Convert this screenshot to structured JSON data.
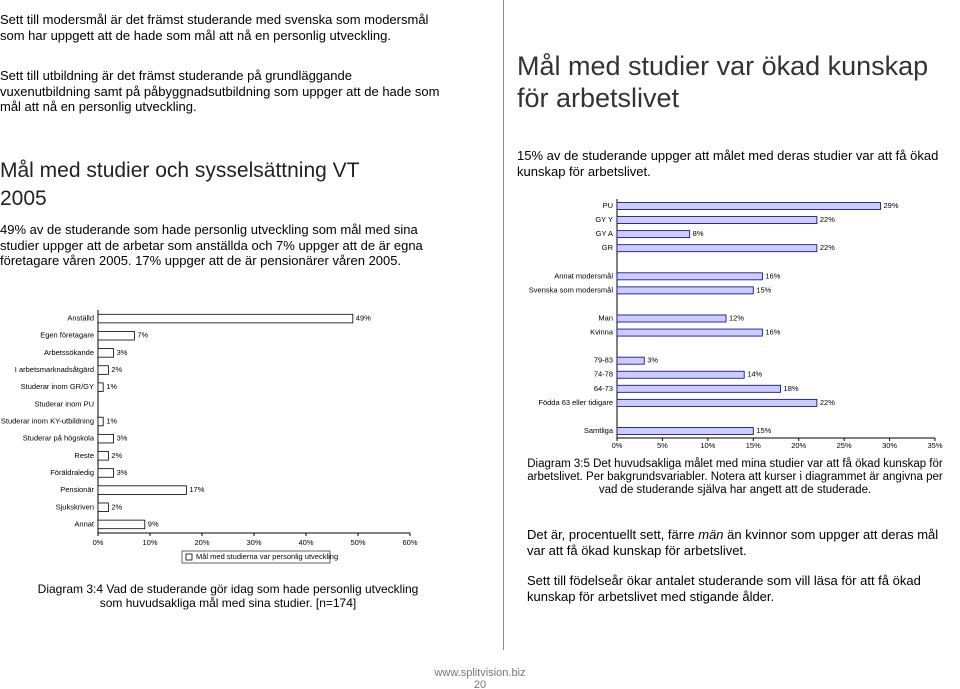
{
  "left": {
    "paragraphs": [
      "Sett till modersmål är det främst studerande med svenska som modersmål som har uppgett att de hade som mål att nå en personlig utveckling.",
      "Sett till utbildning är det främst studerande på grundläggande vuxenutbildning samt på påbyggnadsutbildning som uppger att de hade som mål att nå en personlig utveckling."
    ],
    "heading": "Mål med studier och sysselsättning VT 2005",
    "body": "49% av de studerande som hade personlig utveckling som mål med sina studier uppger att de arbetar som anställda och 7% uppger att de är egna företagare våren 2005. 17% uppger att de är pensionärer våren 2005.",
    "caption": "Diagram 3:4 Vad de studerande gör idag som hade personlig utveckling som huvudsakliga mål med sina studier. [n=174]"
  },
  "right": {
    "heading": "Mål med studier var ökad kunskap för arbetslivet",
    "body": "15% av de studerande uppger att målet med deras studier var att få ökad kunskap för arbetslivet.",
    "caption": "Diagram 3:5 Det huvudsakliga målet med mina studier var att få ökad kunskap för arbetslivet. Per bakgrundsvariabler. Notera att kurser i diagrammet är angivna per vad de studerande själva har angett att de studerade.",
    "paragraph1": [
      "Det är, procentuellt sett, färre ",
      "män",
      " än kvinnor som uppger att deras mål var att få ökad kunskap för arbetslivet."
    ],
    "paragraph2": "Sett till födelseår ökar antalet studerande som vill läsa för att få ökad kunskap för arbetslivet med stigande ålder."
  },
  "footer": {
    "url": "www.splitvision.biz",
    "page": "20"
  },
  "chart_data": [
    {
      "type": "hbar",
      "categories": [
        "Anställd",
        "Egen företagare",
        "Arbetssökande",
        "I arbetsmarknadsåtgärd",
        "Studerar inom GR/GY",
        "Studerar inom PU",
        "Studerar inom KY-utbildning",
        "Studerar på högskola",
        "Reste",
        "Föräldraledig",
        "Pensionär",
        "Sjukskriven",
        "Annat"
      ],
      "series": [
        {
          "name": "Mål med studierna var personlig utveckling",
          "color": "#ffffff",
          "values": [
            49,
            7,
            3,
            2,
            1,
            null,
            1,
            3,
            2,
            3,
            17,
            2,
            9
          ],
          "value_labels": [
            "49%",
            "7%",
            "3%",
            "2%",
            "1%",
            null,
            "1%",
            "3%",
            "2%",
            "3%",
            "17%",
            "2%",
            "9%"
          ]
        }
      ],
      "xlim": [
        0,
        60
      ],
      "xticks": [
        {
          "value": 0,
          "label": "0%"
        },
        {
          "value": 10,
          "label": "10%"
        },
        {
          "value": 20,
          "label": "20%"
        },
        {
          "value": 30,
          "label": "30%"
        },
        {
          "value": 40,
          "label": "40%"
        },
        {
          "value": 50,
          "label": "50%"
        },
        {
          "value": 60,
          "label": "60%"
        }
      ],
      "legend": "bottom"
    },
    {
      "type": "hbar",
      "categories": [
        "PU",
        "GY Y",
        "GY A",
        "GR",
        null,
        "Annat modersmål",
        "Svenska som modersmål",
        null,
        "Man",
        "Kvinna",
        null,
        "79-83",
        "74-78",
        "64-73",
        "Födda 63 eller tidigare",
        null,
        "Samtliga"
      ],
      "series": [
        {
          "color": "#ccccff",
          "values": [
            29,
            22,
            8,
            22,
            null,
            16,
            15,
            null,
            12,
            16,
            null,
            3,
            14,
            18,
            22,
            null,
            15
          ],
          "value_labels": [
            "29%",
            "22%",
            "8%",
            "22%",
            null,
            "16%",
            "15%",
            null,
            "12%",
            "16%",
            null,
            "3%",
            "14%",
            "18%",
            "22%",
            null,
            "15%"
          ]
        }
      ],
      "xlim": [
        0,
        35
      ],
      "xticks": [
        {
          "value": 0,
          "label": "0%"
        },
        {
          "value": 5,
          "label": "5%"
        },
        {
          "value": 10,
          "label": "10%"
        },
        {
          "value": 15,
          "label": "15%"
        },
        {
          "value": 20,
          "label": "20%"
        },
        {
          "value": 25,
          "label": "25%"
        },
        {
          "value": 30,
          "label": "30%"
        },
        {
          "value": 35,
          "label": "35%"
        }
      ]
    }
  ]
}
